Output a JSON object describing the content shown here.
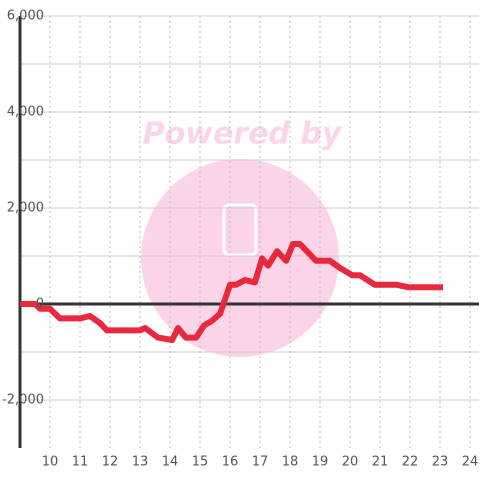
{
  "chart_data": {
    "type": "line",
    "watermark": "Powered by",
    "x": [
      9.0,
      9.5,
      9.67,
      10.0,
      10.33,
      11.0,
      11.33,
      11.67,
      11.9,
      13.0,
      13.17,
      13.6,
      14.07,
      14.27,
      14.53,
      14.87,
      15.13,
      15.4,
      15.67,
      16.0,
      16.2,
      16.5,
      16.83,
      17.07,
      17.27,
      17.57,
      17.87,
      18.1,
      18.33,
      18.87,
      19.33,
      19.67,
      20.07,
      20.33,
      20.83,
      21.57,
      21.93,
      23.1
    ],
    "series": [
      {
        "color": "#e8283c",
        "values": [
          0,
          0,
          -100,
          -100,
          -300,
          -300,
          -250,
          -400,
          -550,
          -550,
          -500,
          -700,
          -750,
          -500,
          -700,
          -700,
          -450,
          -350,
          -200,
          400,
          400,
          500,
          450,
          950,
          800,
          1100,
          900,
          1250,
          1250,
          900,
          900,
          750,
          600,
          600,
          400,
          400,
          350,
          350
        ]
      }
    ],
    "xlim": [
      9,
      24.3
    ],
    "xticks": [
      10,
      11,
      12,
      13,
      14,
      15,
      16,
      17,
      18,
      19,
      20,
      21,
      22,
      23,
      24
    ],
    "ylim": [
      -3000,
      6000
    ],
    "yticks": [
      {
        "value": -2000,
        "label": "-2,000"
      },
      0,
      {
        "value": 2000,
        "label": "2,000"
      },
      {
        "value": 4000,
        "label": "4,000"
      },
      {
        "value": 6000,
        "label": "6,000"
      }
    ],
    "minor_yticks": [
      -1000,
      1000,
      3000,
      5000
    ],
    "grid": true
  }
}
